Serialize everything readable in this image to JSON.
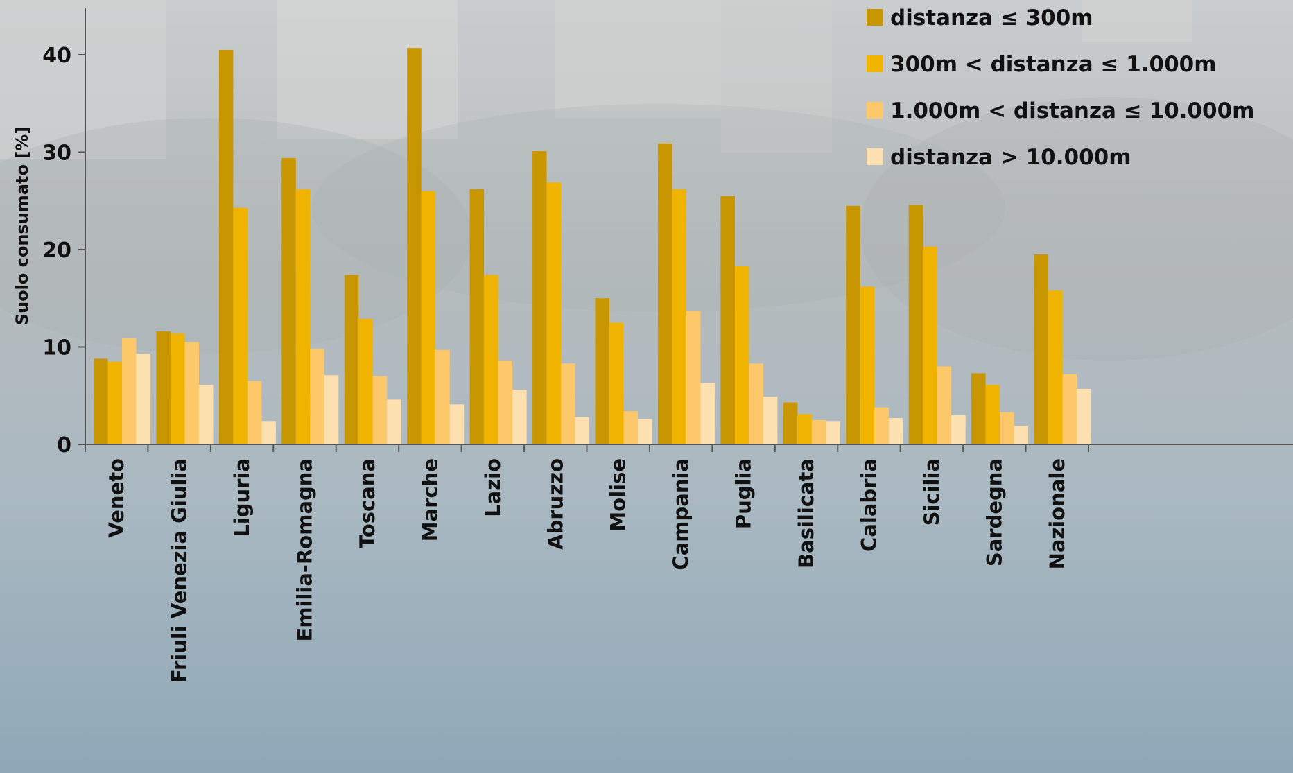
{
  "chart_data": {
    "type": "bar",
    "title": "",
    "xlabel": "",
    "ylabel": "Suolo consumato [%]",
    "ylim": [
      0,
      45
    ],
    "yticks": [
      0,
      10,
      20,
      30,
      40
    ],
    "grid": false,
    "legend_position": "top-right",
    "categories": [
      "Veneto",
      "Friuli Venezia Giulia",
      "Liguria",
      "Emilia-Romagna",
      "Toscana",
      "Marche",
      "Lazio",
      "Abruzzo",
      "Molise",
      "Campania",
      "Puglia",
      "Basilicata",
      "Calabria",
      "Sicilia",
      "Sardegna",
      "Nazionale"
    ],
    "series": [
      {
        "name": "distanza ≤ 300m",
        "color": "#c89600",
        "values": [
          8.8,
          11.6,
          40.5,
          29.4,
          17.4,
          40.7,
          26.2,
          30.1,
          15.0,
          30.9,
          25.5,
          4.3,
          24.5,
          24.6,
          7.3,
          19.5
        ]
      },
      {
        "name": "300m < distanza ≤ 1.000m",
        "color": "#f0b400",
        "values": [
          8.5,
          11.4,
          24.3,
          26.2,
          12.9,
          26.0,
          17.4,
          26.9,
          12.5,
          26.2,
          18.3,
          3.1,
          16.2,
          20.3,
          6.1,
          15.8
        ]
      },
      {
        "name": "1.000m < distanza ≤ 10.000m",
        "color": "#fcc86a",
        "values": [
          10.9,
          10.5,
          6.5,
          9.8,
          7.0,
          9.7,
          8.6,
          8.3,
          3.4,
          13.7,
          8.3,
          2.5,
          3.8,
          8.0,
          3.3,
          7.2
        ]
      },
      {
        "name": "distanza > 10.000m",
        "color": "#fde0b0",
        "values": [
          9.3,
          6.1,
          2.4,
          7.1,
          4.6,
          4.1,
          5.6,
          2.8,
          2.6,
          6.3,
          4.9,
          2.4,
          2.7,
          3.0,
          1.9,
          5.7
        ]
      }
    ]
  }
}
